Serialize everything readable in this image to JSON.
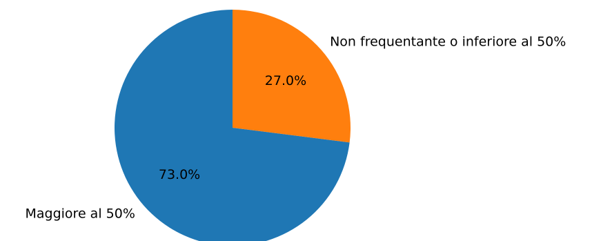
{
  "chart_data": {
    "type": "pie",
    "title": "",
    "slices": [
      {
        "label": "Non frequentante o inferiore al 50%",
        "value": 27.0,
        "pct_label": "27.0%",
        "color": "#ff7f0e"
      },
      {
        "label": "Maggiore al 50%",
        "value": 73.0,
        "pct_label": "73.0%",
        "color": "#1f77b4"
      }
    ],
    "start_angle": "12 o'clock",
    "direction": "clockwise",
    "legend": "none"
  }
}
